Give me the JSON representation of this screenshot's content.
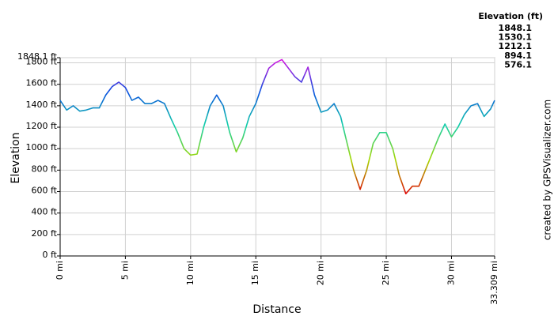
{
  "chart_data": {
    "type": "line",
    "y_label": "Elevation",
    "x_label": "Distance",
    "credit": "created by GPSVisualizer.com",
    "legend_title": "Elevation (ft)",
    "color_scale": [
      {
        "value": 1848.1,
        "color": "#e010e0"
      },
      {
        "value": 1530.1,
        "color": "#0a50e0"
      },
      {
        "value": 1212.1,
        "color": "#10d0a8"
      },
      {
        "value": 894.1,
        "color": "#a8d800"
      },
      {
        "value": 576.1,
        "color": "#e00000"
      }
    ],
    "x": [
      0,
      0.5,
      1,
      1.5,
      2,
      2.5,
      3,
      3.5,
      4,
      4.5,
      5,
      5.5,
      6,
      6.5,
      7,
      7.5,
      8,
      8.5,
      9,
      9.5,
      10,
      10.5,
      11,
      11.5,
      12,
      12.5,
      13,
      13.5,
      14,
      14.5,
      15,
      15.5,
      16,
      16.5,
      17,
      17.5,
      18,
      18.5,
      19,
      19.5,
      20,
      20.5,
      21,
      21.5,
      22,
      22.5,
      23,
      23.5,
      24,
      24.5,
      25,
      25.5,
      26,
      26.5,
      27,
      27.5,
      28,
      28.5,
      29,
      29.5,
      30,
      30.5,
      31,
      31.5,
      32,
      32.5,
      33,
      33.309
    ],
    "values": [
      1450,
      1360,
      1400,
      1350,
      1360,
      1380,
      1380,
      1500,
      1580,
      1620,
      1570,
      1450,
      1480,
      1420,
      1420,
      1450,
      1420,
      1280,
      1150,
      1000,
      940,
      950,
      1200,
      1400,
      1500,
      1400,
      1150,
      970,
      1100,
      1300,
      1420,
      1600,
      1750,
      1800,
      1830,
      1750,
      1670,
      1620,
      1760,
      1500,
      1340,
      1360,
      1420,
      1300,
      1050,
      800,
      620,
      800,
      1050,
      1150,
      1150,
      1000,
      750,
      580,
      650,
      650,
      800,
      950,
      1100,
      1230,
      1110,
      1200,
      1320,
      1400,
      1420,
      1300,
      1370,
      1450
    ],
    "xlim": [
      0,
      33.309
    ],
    "xticks": [
      {
        "value": 0,
        "label": "0 mi"
      },
      {
        "value": 5,
        "label": "5 mi"
      },
      {
        "value": 10,
        "label": "10 mi"
      },
      {
        "value": 15,
        "label": "15 mi"
      },
      {
        "value": 20,
        "label": "20 mi"
      },
      {
        "value": 25,
        "label": "25 mi"
      },
      {
        "value": 30,
        "label": "30 mi"
      },
      {
        "value": 33.309,
        "label": "33.309 mi"
      }
    ],
    "ylim": [
      0,
      1848.1
    ],
    "yticks": [
      {
        "value": 0,
        "label": "0 ft"
      },
      {
        "value": 200,
        "label": "200 ft"
      },
      {
        "value": 400,
        "label": "400 ft"
      },
      {
        "value": 600,
        "label": "600 ft"
      },
      {
        "value": 800,
        "label": "800 ft"
      },
      {
        "value": 1000,
        "label": "1000 ft"
      },
      {
        "value": 1200,
        "label": "1200 ft"
      },
      {
        "value": 1400,
        "label": "1400 ft"
      },
      {
        "value": 1600,
        "label": "1600 ft"
      },
      {
        "value": 1800,
        "label": "1800 ft"
      },
      {
        "value": 1848.1,
        "label": "1848.1 ft"
      }
    ],
    "grid": true
  }
}
